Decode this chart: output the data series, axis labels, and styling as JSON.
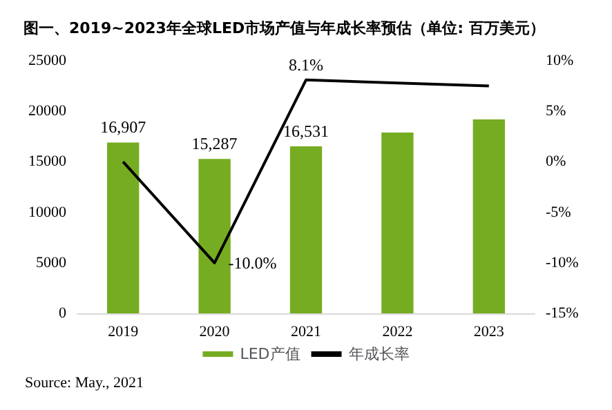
{
  "chart_data": {
    "type": "bar",
    "title": "图一、2019~2023年全球LED市场产值与年成长率预估（单位: 百万美元）",
    "categories": [
      "2019",
      "2020",
      "2021",
      "2022",
      "2023"
    ],
    "series": [
      {
        "name": "LED产值",
        "color": "#76ac22",
        "values": [
          16907,
          15287,
          16531,
          17900,
          19200
        ],
        "value_labels": [
          "16,907",
          "15,287",
          "16,531",
          null,
          null
        ]
      },
      {
        "name": "年成长率",
        "type": "line",
        "axis": "y2",
        "color": "#000000",
        "values": [
          0,
          -10.0,
          8.1,
          7.8,
          7.5
        ],
        "value_labels": [
          null,
          "-10.0%",
          "8.1%",
          null,
          null
        ]
      }
    ],
    "ylim": [
      0,
      25000
    ],
    "yticks": [
      0,
      5000,
      10000,
      15000,
      20000,
      25000
    ],
    "y2lim": [
      -15,
      10
    ],
    "y2ticks": [
      {
        "value": -15,
        "label": "-15%"
      },
      {
        "value": -10,
        "label": "-10%"
      },
      {
        "value": -5,
        "label": "-5%"
      },
      {
        "value": 0,
        "label": "0%"
      },
      {
        "value": 5,
        "label": "5%"
      },
      {
        "value": 10,
        "label": "10%"
      }
    ],
    "grid": false,
    "legend": "bottom",
    "marker": "none",
    "line_style": "solid",
    "annotations": [
      "Source: May., 2021"
    ]
  }
}
